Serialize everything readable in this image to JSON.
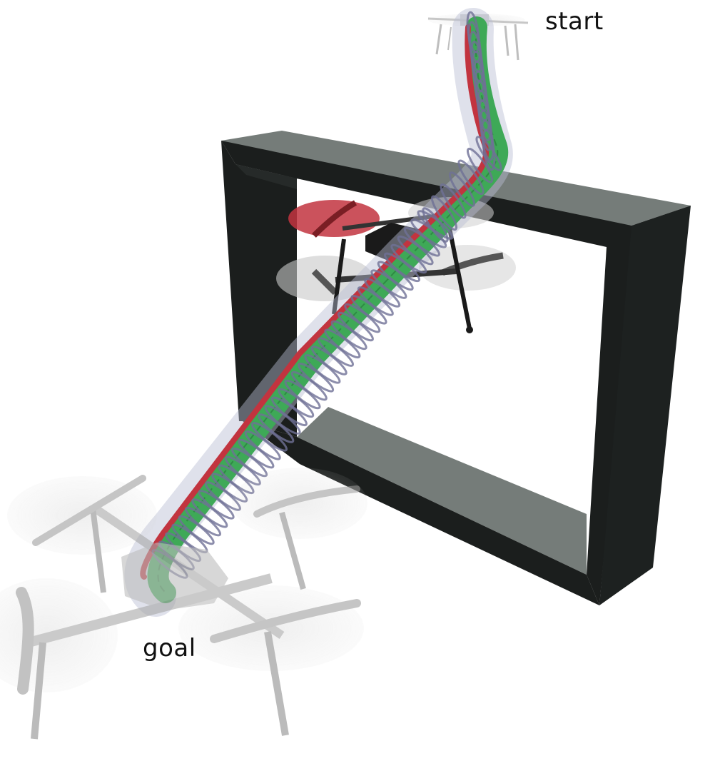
{
  "labels": {
    "start": "start",
    "goal": "goal"
  },
  "colors": {
    "frame_face": "#1b1e1d",
    "frame_top": "#757c79",
    "tube_ring": "#6f7096",
    "tube_fill": "#b9bcd3",
    "path_green": "#3ea957",
    "path_red": "#c2343f",
    "drone_body": "#1a1a1a",
    "ghost_drone": "#9b9b9b"
  }
}
